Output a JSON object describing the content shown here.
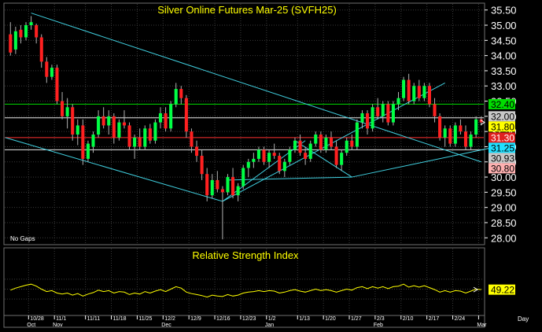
{
  "colors": {
    "background": "#000000",
    "panel_border": "#6f6f6f",
    "grid": "#3a3a3a",
    "title": "#ffff00",
    "axis_text": "#ffffff",
    "up_candle": "#00ff44",
    "down_candle": "#ff2020",
    "wick": "#b0b0b0",
    "trendline": "#40d0e0",
    "level_green": "#00dd00",
    "level_red": "#ff3030",
    "level_white": "#e8e8e8",
    "rsi_line": "#ffff00",
    "tag_green": "#00dd00",
    "tag_yellow": "#ffff00",
    "tag_red": "#e02020",
    "tag_cyan": "#20e0ff",
    "tag_pink": "#ffb0b0",
    "tag_gray": "#c8c8c8"
  },
  "chart_data": [
    {
      "type": "candlestick",
      "title": "Silver Online Futures Mar-25 (SVFH25)",
      "note": "No Gaps",
      "ylim": [
        27.8,
        35.7
      ],
      "y_ticks": [
        "35.50",
        "35.00",
        "34.50",
        "34.00",
        "33.50",
        "33.00",
        "32.50",
        "32.00",
        "31.50",
        "31.00",
        "30.50",
        "30.00",
        "29.50",
        "29.00",
        "28.50",
        "28.00"
      ],
      "x_ticks": [
        {
          "index": 4,
          "label": "10/28",
          "month": "Oct"
        },
        {
          "index": 9,
          "label": "11/1",
          "month": "Nov"
        },
        {
          "index": 15,
          "label": "11/11",
          "month": ""
        },
        {
          "index": 20,
          "label": "11/18",
          "month": ""
        },
        {
          "index": 25,
          "label": "11/25",
          "month": ""
        },
        {
          "index": 30,
          "label": "12/2",
          "month": "Dec"
        },
        {
          "index": 35,
          "label": "12/9",
          "month": ""
        },
        {
          "index": 40,
          "label": "12/16",
          "month": ""
        },
        {
          "index": 45,
          "label": "12/23",
          "month": ""
        },
        {
          "index": 50,
          "label": "1/2",
          "month": "Jan"
        },
        {
          "index": 56,
          "label": "1/13",
          "month": ""
        },
        {
          "index": 61,
          "label": "1/20",
          "month": ""
        },
        {
          "index": 66,
          "label": "1/27",
          "month": ""
        },
        {
          "index": 71,
          "label": "2/3",
          "month": "Feb"
        },
        {
          "index": 76,
          "label": "2/10",
          "month": ""
        },
        {
          "index": 81,
          "label": "2/17",
          "month": ""
        },
        {
          "index": 86,
          "label": "2/24",
          "month": ""
        },
        {
          "index": 91,
          "label": "",
          "month": "Mar"
        }
      ],
      "candles": [
        {
          "o": 34.7,
          "h": 35.1,
          "l": 34.0,
          "c": 34.1
        },
        {
          "o": 34.2,
          "h": 34.95,
          "l": 34.05,
          "c": 34.8
        },
        {
          "o": 34.85,
          "h": 35.0,
          "l": 34.4,
          "c": 34.6
        },
        {
          "o": 34.6,
          "h": 35.1,
          "l": 34.5,
          "c": 35.0
        },
        {
          "o": 35.0,
          "h": 35.3,
          "l": 34.85,
          "c": 35.1
        },
        {
          "o": 35.0,
          "h": 35.05,
          "l": 34.4,
          "c": 34.6
        },
        {
          "o": 34.6,
          "h": 34.7,
          "l": 33.6,
          "c": 33.8
        },
        {
          "o": 33.8,
          "h": 33.95,
          "l": 33.1,
          "c": 33.3
        },
        {
          "o": 33.3,
          "h": 33.7,
          "l": 33.2,
          "c": 33.6
        },
        {
          "o": 33.6,
          "h": 33.7,
          "l": 32.4,
          "c": 32.5
        },
        {
          "o": 32.5,
          "h": 32.8,
          "l": 31.9,
          "c": 32.0
        },
        {
          "o": 32.0,
          "h": 32.6,
          "l": 31.6,
          "c": 32.3
        },
        {
          "o": 32.3,
          "h": 32.4,
          "l": 31.2,
          "c": 31.4
        },
        {
          "o": 31.4,
          "h": 31.9,
          "l": 31.05,
          "c": 31.7
        },
        {
          "o": 31.7,
          "h": 31.9,
          "l": 30.4,
          "c": 30.6
        },
        {
          "o": 30.6,
          "h": 31.2,
          "l": 30.5,
          "c": 31.1
        },
        {
          "o": 31.0,
          "h": 31.5,
          "l": 30.8,
          "c": 31.4
        },
        {
          "o": 31.4,
          "h": 32.2,
          "l": 31.3,
          "c": 32.0
        },
        {
          "o": 32.0,
          "h": 32.3,
          "l": 31.6,
          "c": 31.7
        },
        {
          "o": 31.7,
          "h": 32.2,
          "l": 31.4,
          "c": 32.0
        },
        {
          "o": 32.0,
          "h": 32.1,
          "l": 31.1,
          "c": 31.3
        },
        {
          "o": 31.3,
          "h": 31.9,
          "l": 31.2,
          "c": 31.8
        },
        {
          "o": 31.8,
          "h": 32.2,
          "l": 31.6,
          "c": 31.7
        },
        {
          "o": 31.7,
          "h": 31.8,
          "l": 30.9,
          "c": 31.0
        },
        {
          "o": 31.0,
          "h": 31.4,
          "l": 30.6,
          "c": 31.3
        },
        {
          "o": 31.3,
          "h": 31.6,
          "l": 30.9,
          "c": 31.0
        },
        {
          "o": 31.0,
          "h": 31.7,
          "l": 30.9,
          "c": 31.6
        },
        {
          "o": 31.6,
          "h": 31.75,
          "l": 31.1,
          "c": 31.2
        },
        {
          "o": 31.2,
          "h": 31.9,
          "l": 31.1,
          "c": 31.8
        },
        {
          "o": 31.8,
          "h": 32.3,
          "l": 31.6,
          "c": 32.1
        },
        {
          "o": 32.1,
          "h": 32.3,
          "l": 31.5,
          "c": 31.6
        },
        {
          "o": 31.6,
          "h": 32.5,
          "l": 31.5,
          "c": 32.4
        },
        {
          "o": 32.4,
          "h": 33.1,
          "l": 32.3,
          "c": 32.9
        },
        {
          "o": 32.9,
          "h": 33.0,
          "l": 32.4,
          "c": 32.6
        },
        {
          "o": 32.6,
          "h": 32.7,
          "l": 31.3,
          "c": 31.5
        },
        {
          "o": 31.5,
          "h": 31.6,
          "l": 30.8,
          "c": 31.0
        },
        {
          "o": 31.0,
          "h": 31.2,
          "l": 30.5,
          "c": 30.7
        },
        {
          "o": 30.7,
          "h": 30.9,
          "l": 29.9,
          "c": 30.1
        },
        {
          "o": 30.1,
          "h": 30.3,
          "l": 29.2,
          "c": 29.4
        },
        {
          "o": 29.4,
          "h": 30.1,
          "l": 29.3,
          "c": 29.9
        },
        {
          "o": 29.9,
          "h": 30.2,
          "l": 29.5,
          "c": 29.6
        },
        {
          "o": 29.6,
          "h": 29.7,
          "l": 27.95,
          "c": 29.5
        },
        {
          "o": 29.5,
          "h": 30.1,
          "l": 29.4,
          "c": 30.0
        },
        {
          "o": 30.0,
          "h": 30.3,
          "l": 29.3,
          "c": 29.4
        },
        {
          "o": 29.4,
          "h": 29.8,
          "l": 29.2,
          "c": 29.7
        },
        {
          "o": 29.7,
          "h": 30.4,
          "l": 29.6,
          "c": 30.3
        },
        {
          "o": 30.3,
          "h": 30.6,
          "l": 30.0,
          "c": 30.5
        },
        {
          "o": 30.5,
          "h": 30.8,
          "l": 30.3,
          "c": 30.6
        },
        {
          "o": 30.6,
          "h": 31.0,
          "l": 30.5,
          "c": 30.9
        },
        {
          "o": 30.9,
          "h": 31.0,
          "l": 30.4,
          "c": 30.5
        },
        {
          "o": 30.5,
          "h": 30.9,
          "l": 30.3,
          "c": 30.8
        },
        {
          "o": 30.8,
          "h": 31.1,
          "l": 30.6,
          "c": 30.7
        },
        {
          "o": 30.7,
          "h": 30.8,
          "l": 30.1,
          "c": 30.2
        },
        {
          "o": 30.2,
          "h": 30.6,
          "l": 30.0,
          "c": 30.5
        },
        {
          "o": 30.5,
          "h": 31.0,
          "l": 30.4,
          "c": 30.9
        },
        {
          "o": 30.9,
          "h": 31.3,
          "l": 30.8,
          "c": 31.2
        },
        {
          "o": 31.2,
          "h": 31.4,
          "l": 30.7,
          "c": 30.8
        },
        {
          "o": 30.8,
          "h": 31.0,
          "l": 30.4,
          "c": 30.6
        },
        {
          "o": 30.6,
          "h": 31.2,
          "l": 30.5,
          "c": 31.1
        },
        {
          "o": 31.1,
          "h": 31.5,
          "l": 31.0,
          "c": 31.4
        },
        {
          "o": 31.4,
          "h": 31.5,
          "l": 30.8,
          "c": 30.9
        },
        {
          "o": 30.9,
          "h": 31.4,
          "l": 30.8,
          "c": 31.3
        },
        {
          "o": 31.3,
          "h": 31.5,
          "l": 30.9,
          "c": 31.0
        },
        {
          "o": 31.0,
          "h": 31.2,
          "l": 30.3,
          "c": 30.4
        },
        {
          "o": 30.4,
          "h": 30.9,
          "l": 30.2,
          "c": 30.8
        },
        {
          "o": 30.8,
          "h": 31.3,
          "l": 30.7,
          "c": 31.2
        },
        {
          "o": 31.2,
          "h": 31.4,
          "l": 30.9,
          "c": 31.0
        },
        {
          "o": 31.0,
          "h": 31.9,
          "l": 30.9,
          "c": 31.8
        },
        {
          "o": 31.8,
          "h": 32.2,
          "l": 31.6,
          "c": 32.1
        },
        {
          "o": 32.1,
          "h": 32.2,
          "l": 31.4,
          "c": 31.6
        },
        {
          "o": 31.6,
          "h": 32.4,
          "l": 31.5,
          "c": 32.3
        },
        {
          "o": 32.3,
          "h": 32.6,
          "l": 31.9,
          "c": 32.0
        },
        {
          "o": 32.0,
          "h": 32.5,
          "l": 31.8,
          "c": 32.4
        },
        {
          "o": 32.4,
          "h": 32.5,
          "l": 31.7,
          "c": 31.8
        },
        {
          "o": 31.8,
          "h": 32.5,
          "l": 31.7,
          "c": 32.4
        },
        {
          "o": 32.4,
          "h": 32.8,
          "l": 32.2,
          "c": 32.6
        },
        {
          "o": 32.6,
          "h": 33.3,
          "l": 32.5,
          "c": 33.2
        },
        {
          "o": 33.2,
          "h": 33.4,
          "l": 32.4,
          "c": 32.5
        },
        {
          "o": 32.5,
          "h": 33.1,
          "l": 32.4,
          "c": 33.0
        },
        {
          "o": 33.0,
          "h": 33.2,
          "l": 32.5,
          "c": 32.6
        },
        {
          "o": 32.6,
          "h": 33.1,
          "l": 32.5,
          "c": 33.0
        },
        {
          "o": 33.0,
          "h": 33.1,
          "l": 32.3,
          "c": 32.4
        },
        {
          "o": 32.4,
          "h": 32.6,
          "l": 31.8,
          "c": 32.0
        },
        {
          "o": 32.0,
          "h": 32.1,
          "l": 31.2,
          "c": 31.3
        },
        {
          "o": 31.3,
          "h": 31.7,
          "l": 31.0,
          "c": 31.6
        },
        {
          "o": 31.6,
          "h": 31.7,
          "l": 31.0,
          "c": 31.1
        },
        {
          "o": 31.1,
          "h": 31.8,
          "l": 31.0,
          "c": 31.7
        },
        {
          "o": 31.7,
          "h": 31.9,
          "l": 31.4,
          "c": 31.5
        },
        {
          "o": 31.5,
          "h": 31.7,
          "l": 30.9,
          "c": 31.0
        },
        {
          "o": 31.0,
          "h": 31.5,
          "l": 30.9,
          "c": 31.4
        },
        {
          "o": 31.4,
          "h": 32.0,
          "l": 31.3,
          "c": 31.9
        },
        {
          "o": 31.9,
          "h": 32.0,
          "l": 31.7,
          "c": 31.8
        }
      ],
      "horizontal_levels": [
        {
          "value": 32.4,
          "color": "#00dd00"
        },
        {
          "value": 31.95,
          "color": "#e8e8e8"
        },
        {
          "value": 31.3,
          "color": "#ff3030"
        },
        {
          "value": 30.9,
          "color": "#e8e8e8"
        }
      ],
      "trendlines": [
        {
          "from": [
            4,
            35.4
          ],
          "to": [
            91,
            30.5
          ]
        },
        {
          "from": [
            -1,
            31.3
          ],
          "to": [
            41,
            29.2
          ]
        },
        {
          "from": [
            41,
            29.2
          ],
          "to": [
            57,
            31.2
          ]
        },
        {
          "from": [
            41,
            29.2
          ],
          "to": [
            84,
            33.1
          ]
        },
        {
          "from": [
            42,
            29.9
          ],
          "to": [
            66,
            30.0
          ]
        },
        {
          "from": [
            55,
            31.2
          ],
          "to": [
            66,
            30.0
          ]
        },
        {
          "from": [
            66,
            30.0
          ],
          "to": [
            94,
            31.0
          ]
        }
      ],
      "price_tags": [
        {
          "value": "32.40",
          "level": 32.4,
          "color": "#00dd00",
          "text_color": "#000000"
        },
        {
          "value": "32.00",
          "level": 32.0,
          "color": "#c8c8c8",
          "text_color": "#000000"
        },
        {
          "value": "31.80",
          "level": 31.8,
          "color": "#ffff00",
          "text_color": "#000000"
        },
        {
          "value": "31.30",
          "level": 31.3,
          "color": "#e02020",
          "text_color": "#ffffff"
        },
        {
          "value": "31.25",
          "level": 31.25,
          "color": "#20e0ff",
          "text_color": "#000000"
        },
        {
          "value": "30.93",
          "level": 30.93,
          "color": "#c8c8c8",
          "text_color": "#000000"
        },
        {
          "value": "30.80",
          "level": 30.8,
          "color": "#ffb0b0",
          "text_color": "#000000"
        }
      ]
    },
    {
      "type": "line",
      "title": "Relative Strength Index",
      "ylim": [
        0,
        100
      ],
      "last_value": "49.22",
      "values": [
        48,
        52,
        55,
        58,
        60,
        56,
        50,
        45,
        47,
        42,
        40,
        42,
        38,
        41,
        36,
        40,
        43,
        48,
        45,
        47,
        42,
        45,
        44,
        39,
        42,
        40,
        45,
        42,
        46,
        49,
        45,
        50,
        55,
        52,
        44,
        41,
        39,
        37,
        34,
        38,
        36,
        35,
        39,
        36,
        38,
        42,
        44,
        45,
        47,
        45,
        47,
        46,
        42,
        44,
        47,
        49,
        46,
        44,
        47,
        50,
        47,
        49,
        47,
        44,
        47,
        50,
        48,
        53,
        55,
        51,
        55,
        52,
        55,
        51,
        55,
        56,
        60,
        54,
        57,
        54,
        57,
        53,
        49,
        44,
        47,
        44,
        47,
        46,
        42,
        46,
        50,
        49
      ]
    }
  ],
  "axis": {
    "time_unit": "Day"
  }
}
